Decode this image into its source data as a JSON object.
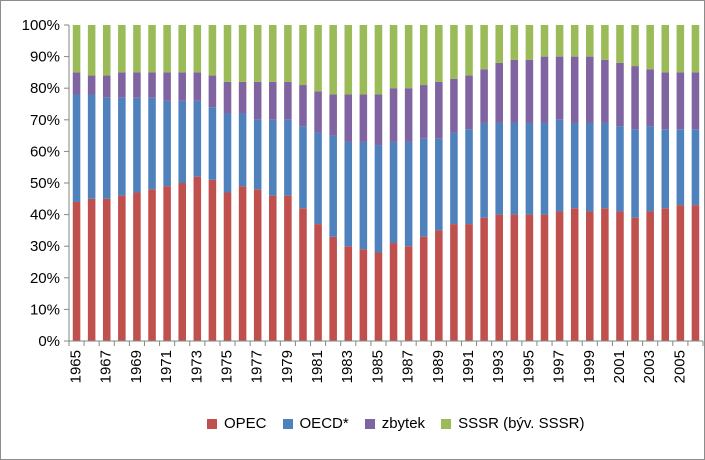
{
  "chart_data": {
    "type": "bar",
    "stacked": true,
    "percent": true,
    "title": "",
    "xlabel": "",
    "ylabel": "",
    "ylim": [
      0,
      100
    ],
    "y_ticks": [
      "0%",
      "10%",
      "20%",
      "30%",
      "40%",
      "50%",
      "60%",
      "70%",
      "80%",
      "90%",
      "100%"
    ],
    "grid": false,
    "legend_position": "bottom",
    "categories": [
      "1965",
      "1966",
      "1967",
      "1968",
      "1969",
      "1970",
      "1971",
      "1972",
      "1973",
      "1974",
      "1975",
      "1976",
      "1977",
      "1978",
      "1979",
      "1980",
      "1981",
      "1982",
      "1983",
      "1984",
      "1985",
      "1986",
      "1987",
      "1988",
      "1989",
      "1990",
      "1991",
      "1992",
      "1993",
      "1994",
      "1995",
      "1996",
      "1997",
      "1998",
      "1999",
      "2000",
      "2001",
      "2002",
      "2003",
      "2004",
      "2005",
      "2006"
    ],
    "x_tick_labels": [
      "1965",
      "1967",
      "1969",
      "1971",
      "1973",
      "1975",
      "1977",
      "1979",
      "1981",
      "1983",
      "1985",
      "1987",
      "1989",
      "1991",
      "1993",
      "1995",
      "1997",
      "1999",
      "2001",
      "2003",
      "2005"
    ],
    "series": [
      {
        "name": "OPEC",
        "color": "#C0504D",
        "values": [
          44,
          45,
          45,
          46,
          47,
          48,
          49,
          50,
          52,
          51,
          47,
          49,
          48,
          46,
          46,
          42,
          37,
          33,
          30,
          29,
          28,
          31,
          30,
          33,
          35,
          37,
          37,
          39,
          40,
          40,
          40,
          40,
          41,
          42,
          41,
          42,
          41,
          39,
          41,
          42,
          43,
          43
        ]
      },
      {
        "name": "OECD*",
        "color": "#4F81BD",
        "values": [
          34,
          33,
          32,
          31,
          30,
          29,
          27,
          26,
          24,
          23,
          25,
          23,
          22,
          24,
          24,
          26,
          29,
          32,
          33,
          34,
          34,
          32,
          33,
          31,
          29,
          29,
          30,
          30,
          29,
          29,
          29,
          29,
          29,
          27,
          28,
          27,
          27,
          28,
          27,
          25,
          24,
          24
        ]
      },
      {
        "name": "zbytek",
        "color": "#8064A2",
        "values": [
          7,
          6,
          7,
          8,
          8,
          8,
          9,
          9,
          9,
          10,
          10,
          10,
          12,
          12,
          12,
          13,
          13,
          13,
          15,
          15,
          16,
          17,
          17,
          17,
          18,
          17,
          17,
          17,
          19,
          20,
          20,
          21,
          20,
          21,
          21,
          20,
          20,
          20,
          18,
          18,
          18,
          18
        ]
      },
      {
        "name": "SSSR (býv. SSSR)",
        "color": "#9BBB59",
        "values": [
          15,
          16,
          16,
          15,
          15,
          15,
          15,
          15,
          15,
          16,
          18,
          18,
          18,
          18,
          18,
          19,
          21,
          22,
          22,
          22,
          22,
          20,
          20,
          19,
          18,
          17,
          16,
          14,
          12,
          11,
          11,
          10,
          10,
          10,
          10,
          11,
          12,
          13,
          14,
          15,
          15,
          15
        ]
      }
    ]
  }
}
